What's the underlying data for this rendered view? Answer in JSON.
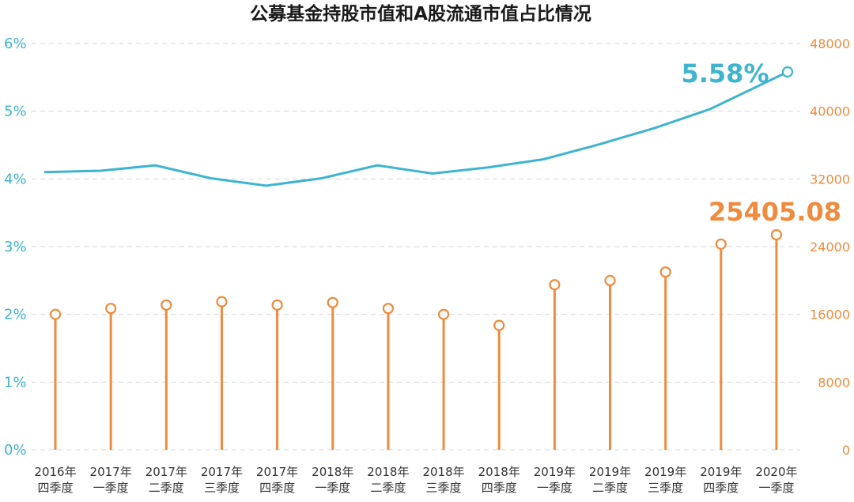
{
  "chart_data": {
    "title": "公募基金持股市值和A股流通市值占比情况",
    "type": "line+lollipop",
    "categories": [
      [
        "2016年",
        "四季度"
      ],
      [
        "2017年",
        "一季度"
      ],
      [
        "2017年",
        "二季度"
      ],
      [
        "2017年",
        "三季度"
      ],
      [
        "2017年",
        "四季度"
      ],
      [
        "2018年",
        "一季度"
      ],
      [
        "2018年",
        "二季度"
      ],
      [
        "2018年",
        "三季度"
      ],
      [
        "2018年",
        "四季度"
      ],
      [
        "2019年",
        "一季度"
      ],
      [
        "2019年",
        "二季度"
      ],
      [
        "2019年",
        "三季度"
      ],
      [
        "2019年",
        "四季度"
      ],
      [
        "2020年",
        "一季度"
      ]
    ],
    "series": [
      {
        "axis": "right",
        "kind": "lollipop",
        "color": "#f08a3c",
        "values": [
          16000,
          16700,
          17100,
          17500,
          17100,
          17400,
          16700,
          16000,
          14700,
          19500,
          20000,
          21000,
          24300,
          25405.08
        ]
      },
      {
        "axis": "left",
        "kind": "line",
        "color": "#3fb4cf",
        "values": [
          4.1,
          4.12,
          4.2,
          4.01,
          3.9,
          4.01,
          4.2,
          4.08,
          4.17,
          4.29,
          4.51,
          4.75,
          5.03,
          5.58
        ]
      }
    ],
    "left_axis": {
      "min": 0,
      "max": 6,
      "ticks": [
        "0%",
        "1%",
        "2%",
        "3%",
        "4%",
        "5%",
        "6%"
      ]
    },
    "right_axis": {
      "min": 0,
      "max": 48000,
      "ticks": [
        "0",
        "8000",
        "16000",
        "24000",
        "32000",
        "40000",
        "48000"
      ]
    },
    "annotations": {
      "pct_last": "5.58%",
      "value_last": "25405.08"
    },
    "grid": true,
    "legend": "none"
  }
}
